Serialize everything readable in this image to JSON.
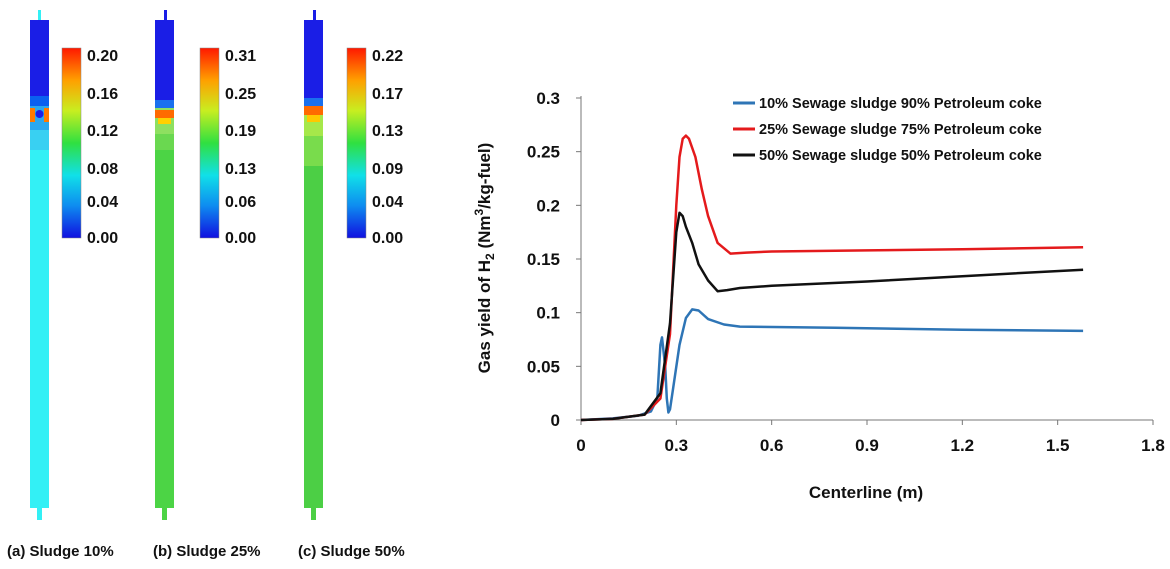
{
  "panels": [
    {
      "caption": "(a) Sludge 10%",
      "colorbar_ticks": [
        "0.20",
        "0.16",
        "0.12",
        "0.08",
        "0.04",
        "0.00"
      ],
      "column_colors": [
        "#1a1ee6",
        "#0a60f0",
        "#2aa8f0",
        "#39d0f2",
        "#33f0f5"
      ],
      "hotspot_colors": [
        "#ff7a00",
        "#ffd000",
        "#ff3a00"
      ]
    },
    {
      "caption": "(b) Sludge 25%",
      "colorbar_ticks": [
        "0.31",
        "0.25",
        "0.19",
        "0.13",
        "0.06",
        "0.00"
      ],
      "column_colors": [
        "#1a1ee6",
        "#1a70ee",
        "#8ee060",
        "#6ad850",
        "#4cd445"
      ],
      "hotspot_colors": [
        "#ff6a00",
        "#ffd000",
        "#ff3000"
      ]
    },
    {
      "caption": "(c) Sludge 50%",
      "colorbar_ticks": [
        "0.22",
        "0.17",
        "0.13",
        "0.09",
        "0.04",
        "0.00"
      ],
      "column_colors": [
        "#1a1ee6",
        "#1a70ee",
        "#a6e84a",
        "#79dc4c",
        "#4ccf45"
      ],
      "hotspot_colors": [
        "#ff6a00",
        "#ffc800",
        "#ff3000"
      ]
    }
  ],
  "chart_data": {
    "type": "line",
    "xlabel": "Centerline (m)",
    "ylabel_main": "Gas yield of H",
    "ylabel_sub": "2",
    "ylabel_unit_open": " (Nm",
    "ylabel_sup": "3",
    "ylabel_unit_close": "/kg-fuel)",
    "xlim": [
      0,
      1.8
    ],
    "ylim": [
      0,
      0.3
    ],
    "xticks": [
      "0",
      "0.3",
      "0.6",
      "0.9",
      "1.2",
      "1.5",
      "1.8"
    ],
    "yticks": [
      "0",
      "0.05",
      "0.1",
      "0.15",
      "0.2",
      "0.25",
      "0.3"
    ],
    "legend_position": "top-right",
    "series": [
      {
        "name": "10% Sewage sludge 90% Petroleum coke",
        "color": "#2e75b6",
        "x": [
          0,
          0.1,
          0.18,
          0.22,
          0.24,
          0.25,
          0.255,
          0.265,
          0.27,
          0.275,
          0.28,
          0.29,
          0.31,
          0.33,
          0.35,
          0.37,
          0.4,
          0.45,
          0.5,
          0.8,
          1.2,
          1.58
        ],
        "y": [
          0,
          0.0015,
          0.004,
          0.008,
          0.02,
          0.07,
          0.077,
          0.05,
          0.02,
          0.007,
          0.01,
          0.03,
          0.07,
          0.095,
          0.103,
          0.102,
          0.094,
          0.089,
          0.087,
          0.086,
          0.084,
          0.083
        ]
      },
      {
        "name": "25% Sewage sludge 75% Petroleum coke",
        "color": "#e41a1c",
        "x": [
          0,
          0.1,
          0.2,
          0.25,
          0.28,
          0.3,
          0.31,
          0.32,
          0.33,
          0.34,
          0.36,
          0.38,
          0.4,
          0.43,
          0.47,
          0.52,
          0.6,
          0.9,
          1.2,
          1.58
        ],
        "y": [
          0,
          0.001,
          0.005,
          0.02,
          0.08,
          0.2,
          0.245,
          0.262,
          0.265,
          0.262,
          0.245,
          0.215,
          0.19,
          0.165,
          0.155,
          0.156,
          0.157,
          0.158,
          0.159,
          0.161
        ]
      },
      {
        "name": "50% Sewage sludge 50% Petroleum coke",
        "color": "#111111",
        "x": [
          0,
          0.1,
          0.2,
          0.25,
          0.28,
          0.3,
          0.31,
          0.32,
          0.33,
          0.35,
          0.37,
          0.4,
          0.43,
          0.46,
          0.5,
          0.6,
          0.9,
          1.2,
          1.58
        ],
        "y": [
          0,
          0.001,
          0.005,
          0.025,
          0.09,
          0.175,
          0.193,
          0.19,
          0.18,
          0.165,
          0.145,
          0.13,
          0.12,
          0.121,
          0.123,
          0.125,
          0.129,
          0.134,
          0.14
        ]
      }
    ]
  }
}
